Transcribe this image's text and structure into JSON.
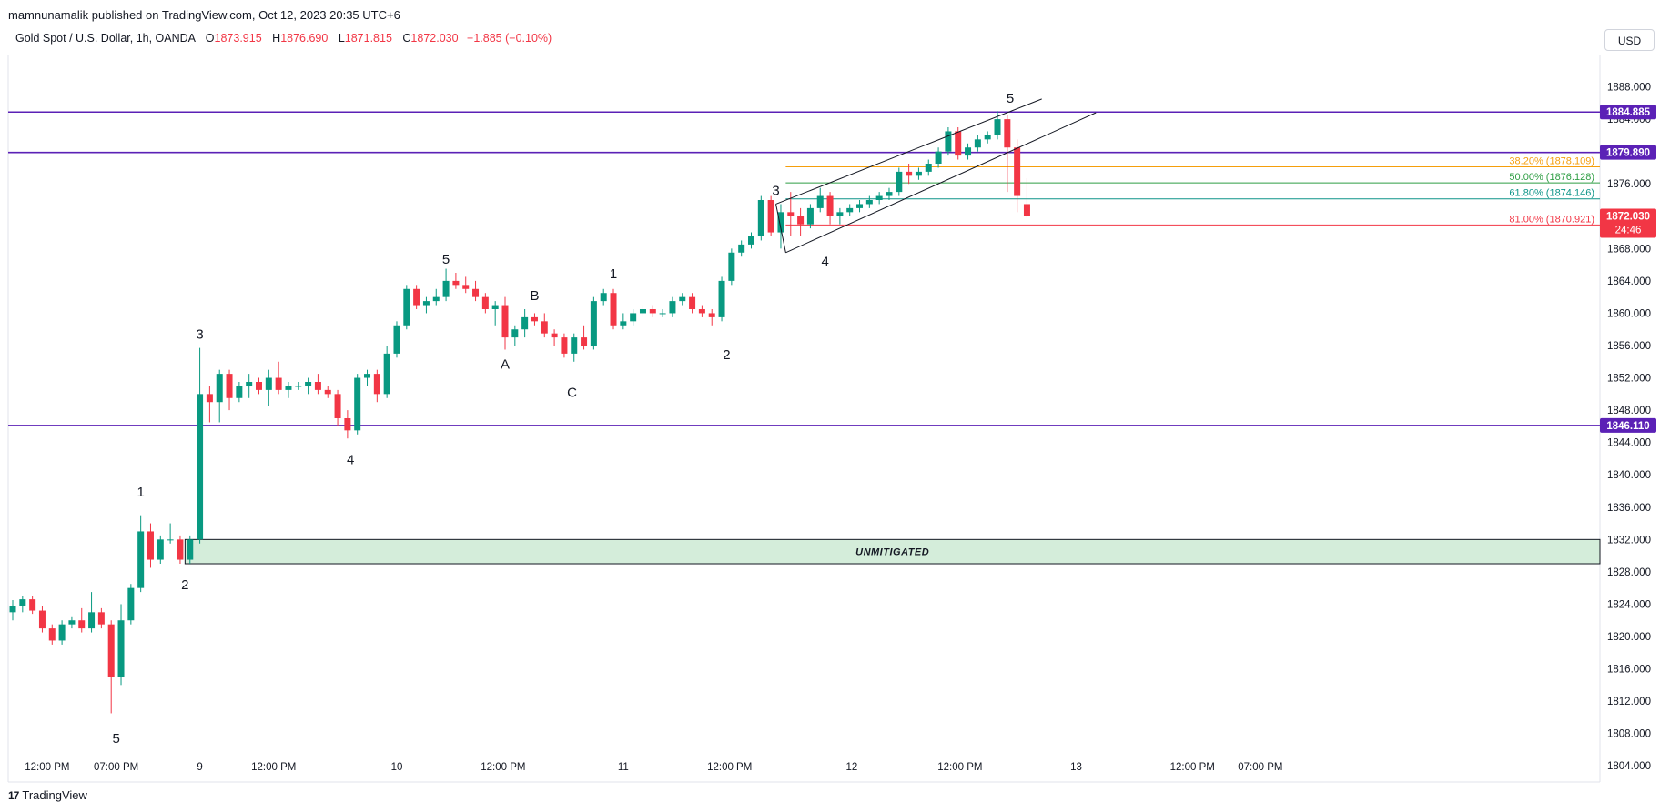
{
  "header": {
    "publisher": "mamnunamalik published on TradingView.com, Oct 12, 2023 20:35 UTC+6"
  },
  "symbol": {
    "name": "Gold Spot / U.S. Dollar, 1h, OANDA",
    "open_label": "O",
    "open": "1873.915",
    "high_label": "H",
    "high": "1876.690",
    "low_label": "L",
    "low": "1871.815",
    "close_label": "C",
    "close": "1872.030",
    "change": "−1.885 (−0.10%)"
  },
  "currency_button": "USD",
  "footer": {
    "brand": "TradingView",
    "logo": "17"
  },
  "colors": {
    "up": "#089981",
    "down": "#f23645",
    "level": "#5b21b6",
    "fib_382": "#f59e0b",
    "fib_500": "#2f9e44",
    "fib_618": "#0d9488",
    "fib_81": "#f23645",
    "zone_fill": "#d4edda"
  },
  "chart_data": {
    "type": "candlestick",
    "title": "",
    "ylim": [
      1802,
      1892
    ],
    "y_ticks": [
      "1888.000",
      "1884.000",
      "1880.000",
      "1876.000",
      "1868.000",
      "1864.000",
      "1860.000",
      "1856.000",
      "1852.000",
      "1848.000",
      "1844.000",
      "1840.000",
      "1836.000",
      "1832.000",
      "1828.000",
      "1824.000",
      "1820.000",
      "1816.000",
      "1812.000",
      "1808.000",
      "1804.000"
    ],
    "x_ticks": [
      {
        "i": 3.5,
        "label": "12:00 PM"
      },
      {
        "i": 10.5,
        "label": "07:00 PM"
      },
      {
        "i": 19.0,
        "label": "9"
      },
      {
        "i": 26.5,
        "label": "12:00 PM"
      },
      {
        "i": 39.0,
        "label": "10"
      },
      {
        "i": 49.8,
        "label": "12:00 PM"
      },
      {
        "i": 62.0,
        "label": "11"
      },
      {
        "i": 72.8,
        "label": "12:00 PM"
      },
      {
        "i": 85.2,
        "label": "12"
      },
      {
        "i": 96.2,
        "label": "12:00 PM"
      },
      {
        "i": 108.0,
        "label": "13"
      },
      {
        "i": 119.8,
        "label": "12:00 PM"
      },
      {
        "i": 126.7,
        "label": "07:00 PM"
      }
    ],
    "candles": [
      [
        1823.0,
        1824.5,
        1822.0,
        1823.8
      ],
      [
        1823.8,
        1825.0,
        1823.0,
        1824.6
      ],
      [
        1824.6,
        1825.0,
        1822.8,
        1823.2
      ],
      [
        1823.2,
        1823.8,
        1820.5,
        1821.0
      ],
      [
        1821.0,
        1821.5,
        1819.0,
        1819.5
      ],
      [
        1819.5,
        1822.0,
        1819.0,
        1821.5
      ],
      [
        1821.5,
        1822.5,
        1821.0,
        1822.0
      ],
      [
        1822.0,
        1823.5,
        1820.5,
        1821.0
      ],
      [
        1821.0,
        1825.5,
        1820.5,
        1823.0
      ],
      [
        1823.0,
        1823.5,
        1821.0,
        1821.5
      ],
      [
        1821.5,
        1822.0,
        1810.5,
        1815.0
      ],
      [
        1815.0,
        1824.0,
        1814.0,
        1822.0
      ],
      [
        1822.0,
        1826.5,
        1821.5,
        1826.0
      ],
      [
        1826.0,
        1835.0,
        1825.5,
        1833.0
      ],
      [
        1833.0,
        1834.0,
        1828.5,
        1829.5
      ],
      [
        1829.5,
        1832.5,
        1829.0,
        1832.0
      ],
      [
        1832.0,
        1834.0,
        1831.5,
        1832.0
      ],
      [
        1832.0,
        1832.5,
        1829.0,
        1829.5
      ],
      [
        1829.5,
        1832.5,
        1829.0,
        1832.0
      ],
      [
        1832.0,
        1855.7,
        1831.5,
        1850.0
      ],
      [
        1850.0,
        1851.0,
        1846.5,
        1849.0
      ],
      [
        1849.0,
        1853.0,
        1846.5,
        1852.5
      ],
      [
        1852.5,
        1853.0,
        1848.0,
        1849.5
      ],
      [
        1849.5,
        1851.5,
        1849.0,
        1851.0
      ],
      [
        1851.0,
        1852.5,
        1849.5,
        1851.5
      ],
      [
        1851.5,
        1852.0,
        1850.0,
        1850.5
      ],
      [
        1850.5,
        1853.0,
        1848.5,
        1852.0
      ],
      [
        1852.0,
        1854.0,
        1850.0,
        1850.5
      ],
      [
        1850.5,
        1851.5,
        1849.5,
        1851.0
      ],
      [
        1851.0,
        1851.5,
        1850.5,
        1851.0
      ],
      [
        1851.0,
        1852.0,
        1850.0,
        1851.5
      ],
      [
        1851.5,
        1852.5,
        1850.0,
        1850.5
      ],
      [
        1850.5,
        1851.0,
        1849.5,
        1850.0
      ],
      [
        1850.0,
        1850.5,
        1846.0,
        1847.0
      ],
      [
        1847.0,
        1848.0,
        1844.5,
        1845.5
      ],
      [
        1845.5,
        1852.5,
        1845.0,
        1852.0
      ],
      [
        1852.0,
        1853.0,
        1851.0,
        1852.5
      ],
      [
        1852.5,
        1853.0,
        1849.0,
        1850.0
      ],
      [
        1850.0,
        1856.0,
        1849.5,
        1855.0
      ],
      [
        1855.0,
        1859.0,
        1854.5,
        1858.5
      ],
      [
        1858.5,
        1863.5,
        1858.0,
        1863.0
      ],
      [
        1863.0,
        1863.5,
        1860.5,
        1861.0
      ],
      [
        1861.0,
        1862.0,
        1860.0,
        1861.5
      ],
      [
        1861.5,
        1863.0,
        1861.0,
        1862.0
      ],
      [
        1862.0,
        1865.5,
        1861.5,
        1864.0
      ],
      [
        1864.0,
        1865.0,
        1863.0,
        1863.5
      ],
      [
        1863.5,
        1864.5,
        1862.5,
        1863.0
      ],
      [
        1863.0,
        1864.0,
        1861.5,
        1862.0
      ],
      [
        1862.0,
        1862.5,
        1860.0,
        1860.5
      ],
      [
        1860.5,
        1861.5,
        1858.5,
        1861.0
      ],
      [
        1861.0,
        1862.0,
        1855.5,
        1857.0
      ],
      [
        1857.0,
        1858.5,
        1856.0,
        1858.0
      ],
      [
        1858.0,
        1860.5,
        1857.0,
        1859.5
      ],
      [
        1859.5,
        1860.0,
        1858.5,
        1859.0
      ],
      [
        1859.0,
        1860.0,
        1857.0,
        1857.5
      ],
      [
        1857.5,
        1858.0,
        1856.0,
        1857.0
      ],
      [
        1857.0,
        1857.5,
        1854.5,
        1855.0
      ],
      [
        1855.0,
        1857.5,
        1854.0,
        1857.0
      ],
      [
        1857.0,
        1858.5,
        1855.5,
        1856.0
      ],
      [
        1856.0,
        1862.0,
        1855.5,
        1861.5
      ],
      [
        1861.5,
        1863.0,
        1861.0,
        1862.5
      ],
      [
        1862.5,
        1863.0,
        1858.0,
        1858.5
      ],
      [
        1858.5,
        1860.0,
        1858.0,
        1859.0
      ],
      [
        1859.0,
        1860.5,
        1858.5,
        1860.0
      ],
      [
        1860.0,
        1861.0,
        1859.5,
        1860.5
      ],
      [
        1860.5,
        1861.0,
        1859.5,
        1860.0
      ],
      [
        1860.0,
        1860.5,
        1859.5,
        1860.0
      ],
      [
        1860.0,
        1862.0,
        1859.5,
        1861.5
      ],
      [
        1861.5,
        1862.5,
        1861.0,
        1862.0
      ],
      [
        1862.0,
        1862.5,
        1860.0,
        1860.5
      ],
      [
        1860.5,
        1861.0,
        1859.5,
        1860.0
      ],
      [
        1860.0,
        1860.5,
        1858.5,
        1859.5
      ],
      [
        1859.5,
        1864.5,
        1859.0,
        1864.0
      ],
      [
        1864.0,
        1868.0,
        1863.5,
        1867.5
      ],
      [
        1867.5,
        1869.0,
        1867.0,
        1868.5
      ],
      [
        1868.5,
        1870.0,
        1868.0,
        1869.5
      ],
      [
        1869.5,
        1874.5,
        1869.0,
        1874.0
      ],
      [
        1874.0,
        1874.5,
        1869.5,
        1870.0
      ],
      [
        1870.0,
        1873.5,
        1868.0,
        1872.5
      ],
      [
        1872.5,
        1875.0,
        1869.5,
        1872.0
      ],
      [
        1872.0,
        1873.0,
        1869.5,
        1871.0
      ],
      [
        1871.0,
        1873.5,
        1870.5,
        1873.0
      ],
      [
        1873.0,
        1875.5,
        1872.5,
        1874.5
      ],
      [
        1874.5,
        1875.0,
        1871.0,
        1872.0
      ],
      [
        1872.0,
        1873.0,
        1871.0,
        1872.5
      ],
      [
        1872.5,
        1873.5,
        1872.0,
        1873.0
      ],
      [
        1873.0,
        1874.0,
        1872.5,
        1873.5
      ],
      [
        1873.5,
        1874.5,
        1873.0,
        1874.0
      ],
      [
        1874.0,
        1875.0,
        1873.5,
        1874.5
      ],
      [
        1874.5,
        1875.5,
        1874.0,
        1875.0
      ],
      [
        1875.0,
        1878.0,
        1874.5,
        1877.5
      ],
      [
        1877.5,
        1878.5,
        1876.0,
        1877.0
      ],
      [
        1877.0,
        1878.0,
        1876.5,
        1877.5
      ],
      [
        1877.5,
        1879.0,
        1877.0,
        1878.5
      ],
      [
        1878.5,
        1880.5,
        1878.0,
        1880.0
      ],
      [
        1880.0,
        1883.0,
        1879.5,
        1882.5
      ],
      [
        1882.5,
        1883.0,
        1879.0,
        1879.5
      ],
      [
        1879.5,
        1881.0,
        1879.0,
        1880.5
      ],
      [
        1880.5,
        1882.0,
        1880.0,
        1881.5
      ],
      [
        1881.5,
        1882.5,
        1881.0,
        1882.0
      ],
      [
        1882.0,
        1885.0,
        1881.5,
        1884.0
      ],
      [
        1884.0,
        1884.5,
        1875.0,
        1880.5
      ],
      [
        1880.5,
        1881.5,
        1872.5,
        1874.5
      ],
      [
        1873.5,
        1876.7,
        1871.8,
        1872.0
      ]
    ],
    "levels": [
      {
        "value": 1884.885,
        "label": "1884.885",
        "color": "#5b21b6"
      },
      {
        "value": 1879.89,
        "label": "1879.890",
        "color": "#5b21b6"
      },
      {
        "value": 1846.11,
        "label": "1846.110",
        "color": "#5b21b6"
      }
    ],
    "current_price": {
      "value": 1872.03,
      "label": "1872.030",
      "countdown": "24:46"
    },
    "fib_levels": [
      {
        "value": 1878.109,
        "label": "38.20% (1878.109)",
        "color": "#f59e0b"
      },
      {
        "value": 1876.128,
        "label": "50.00% (1876.128)",
        "color": "#2f9e44"
      },
      {
        "value": 1874.146,
        "label": "61.80% (1874.146)",
        "color": "#0d9488"
      },
      {
        "value": 1870.921,
        "label": "81.00% (1870.921)",
        "color": "#f23645"
      }
    ],
    "zone": {
      "top": 1832.0,
      "bottom": 1829.0,
      "i_start": 17.5,
      "label": "UNMITIGATED"
    },
    "wedge": [
      {
        "from": [
          77.5,
          1873.5
        ],
        "to": [
          104.5,
          1886.5
        ]
      },
      {
        "from": [
          78.5,
          1867.5
        ],
        "to": [
          110.0,
          1884.8
        ]
      }
    ],
    "wave_labels": [
      {
        "text": "5",
        "i": 10.5,
        "price": 1807.5
      },
      {
        "text": "1",
        "i": 13.0,
        "price": 1838.0
      },
      {
        "text": "2",
        "i": 17.5,
        "price": 1826.5
      },
      {
        "text": "3",
        "i": 19.0,
        "price": 1857.5
      },
      {
        "text": "4",
        "i": 34.3,
        "price": 1842.0
      },
      {
        "text": "5",
        "i": 44.0,
        "price": 1866.8
      },
      {
        "text": "A",
        "i": 50.0,
        "price": 1853.8
      },
      {
        "text": "B",
        "i": 53.0,
        "price": 1862.3
      },
      {
        "text": "C",
        "i": 56.8,
        "price": 1850.3
      },
      {
        "text": "1",
        "i": 61.0,
        "price": 1865.0
      },
      {
        "text": "2",
        "i": 72.5,
        "price": 1855.0
      },
      {
        "text": "3",
        "i": 77.5,
        "price": 1875.3
      },
      {
        "text": "4",
        "i": 82.5,
        "price": 1866.5
      },
      {
        "text": "5",
        "i": 101.3,
        "price": 1886.7
      }
    ]
  }
}
